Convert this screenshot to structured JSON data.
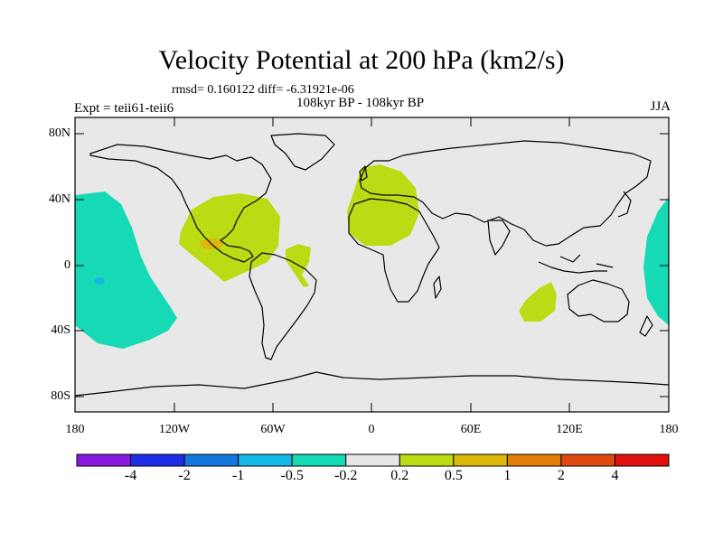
{
  "title": "Velocity Potential at 200 hPa (km2/s)",
  "stats": "rmsd= 0.160122 diff= -6.31921e-06",
  "subtitle": "108kyr BP - 108kyr BP",
  "expt": "Expt = teii61-teii6",
  "season": "JJA",
  "y_ticks": [
    "80N",
    "40N",
    "0",
    "40S",
    "80S"
  ],
  "x_ticks": [
    "180",
    "120W",
    "60W",
    "0",
    "60E",
    "120E",
    "180"
  ],
  "colorbar": {
    "colors": [
      "#8b1ae0",
      "#1e2ee6",
      "#1477dd",
      "#13b8e3",
      "#16d9b6",
      "#e6e6e6",
      "#bbdc14",
      "#dcb70a",
      "#e0800a",
      "#e04a10",
      "#e0100f"
    ],
    "labels": [
      "-4",
      "-2",
      "-1",
      "-0.5",
      "-0.2",
      "0.2",
      "0.5",
      "1",
      "2",
      "4"
    ]
  },
  "map": {
    "ocean_color": "#e8e8e8",
    "coast_color": "#000000"
  }
}
